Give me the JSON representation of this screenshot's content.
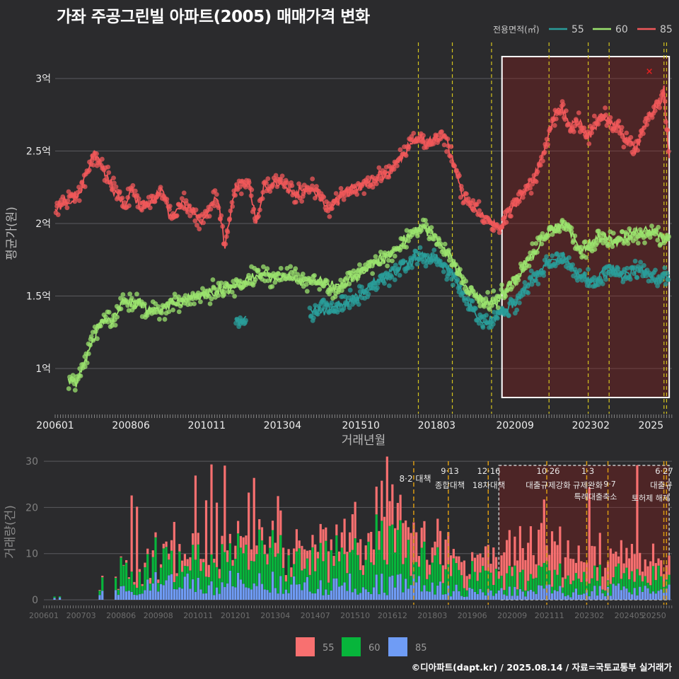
{
  "title": "가좌 주공그린빌 아파트(2005) 매매가격 변화",
  "footer": "©디아파트(dapt.kr) / 2025.08.14 / 자료=국토교통부 실거래가",
  "colors": {
    "s55": "#2a9d9a",
    "s60": "#9be36e",
    "s85": "#f0585a",
    "b55": "#f87070",
    "b60": "#07b53b",
    "b85": "#6f9cf5",
    "vline": "#d4c41e",
    "vline_bottom": "#d99a12",
    "highlight_box": "#ffffff"
  },
  "chart_data": [
    {
      "type": "line",
      "panel": "price",
      "xlabel": "거래년월",
      "ylabel": "평균가(원)",
      "ylim": [
        0.7,
        3.25
      ],
      "y_ticks": [
        {
          "v": 1.0,
          "label": "1억"
        },
        {
          "v": 1.5,
          "label": "1.5억"
        },
        {
          "v": 2.0,
          "label": "2억"
        },
        {
          "v": 2.5,
          "label": "2.5억"
        },
        {
          "v": 3.0,
          "label": "3억"
        }
      ],
      "x_ticks": [
        "200601",
        "200806",
        "201011",
        "201304",
        "201510",
        "201803",
        "202009",
        "202302",
        "2025"
      ],
      "legend": {
        "title": "전용면적(㎡)",
        "position": "top-right",
        "items": [
          "55",
          "60",
          "85"
        ]
      },
      "policy_lines": [
        "2017-08",
        "2018-09",
        "2019-12",
        "2021-10",
        "2023-01",
        "2023-09",
        "2025-06",
        "2025-07"
      ],
      "highlight": {
        "from": "2020-04",
        "to": "2025-08"
      },
      "grid": true,
      "series": [
        {
          "name": "85",
          "points": [
            [
              "2006-01",
              2.1
            ],
            [
              "2006-10",
              2.2
            ],
            [
              "2007-04",
              2.49
            ],
            [
              "2008-04",
              2.1
            ],
            [
              "2008-06",
              2.25
            ],
            [
              "2008-10",
              2.1
            ],
            [
              "2009-06",
              2.22
            ],
            [
              "2009-09",
              2.05
            ],
            [
              "2010-03",
              2.15
            ],
            [
              "2010-09",
              2.0
            ],
            [
              "2011-03",
              2.2
            ],
            [
              "2011-06",
              1.85
            ],
            [
              "2011-10",
              2.25
            ],
            [
              "2012-03",
              2.3
            ],
            [
              "2012-06",
              2.0
            ],
            [
              "2012-09",
              2.25
            ],
            [
              "2013-03",
              2.3
            ],
            [
              "2013-09",
              2.2
            ],
            [
              "2014-03",
              2.25
            ],
            [
              "2014-10",
              2.1
            ],
            [
              "2015-03",
              2.2
            ],
            [
              "2015-09",
              2.25
            ],
            [
              "2016-03",
              2.3
            ],
            [
              "2016-09",
              2.35
            ],
            [
              "2017-03",
              2.5
            ],
            [
              "2017-07",
              2.6
            ],
            [
              "2017-12",
              2.55
            ],
            [
              "2018-06",
              2.6
            ],
            [
              "2018-09",
              2.45
            ],
            [
              "2019-01",
              2.2
            ],
            [
              "2019-06",
              2.1
            ],
            [
              "2019-12",
              2.0
            ],
            [
              "2020-03",
              1.95
            ],
            [
              "2020-07",
              2.1
            ],
            [
              "2020-12",
              2.2
            ],
            [
              "2021-04",
              2.3
            ],
            [
              "2021-08",
              2.5
            ],
            [
              "2021-12",
              2.75
            ],
            [
              "2022-03",
              2.8
            ],
            [
              "2022-06",
              2.65
            ],
            [
              "2022-09",
              2.7
            ],
            [
              "2023-01",
              2.6
            ],
            [
              "2023-06",
              2.75
            ],
            [
              "2023-10",
              2.7
            ],
            [
              "2024-03",
              2.6
            ],
            [
              "2024-07",
              2.5
            ],
            [
              "2024-11",
              2.7
            ],
            [
              "2025-03",
              2.8
            ],
            [
              "2025-06",
              2.9
            ],
            [
              "2025-08",
              2.45
            ]
          ]
        },
        {
          "name": "60",
          "points": [
            [
              "2006-06",
              0.93
            ],
            [
              "2006-09",
              0.9
            ],
            [
              "2007-07",
              1.35
            ],
            [
              "2007-11",
              1.32
            ],
            [
              "2008-03",
              1.48
            ],
            [
              "2008-09",
              1.45
            ],
            [
              "2009-01",
              1.38
            ],
            [
              "2009-06",
              1.42
            ],
            [
              "2009-12",
              1.45
            ],
            [
              "2010-06",
              1.5
            ],
            [
              "2010-12",
              1.52
            ],
            [
              "2011-06",
              1.55
            ],
            [
              "2011-12",
              1.58
            ],
            [
              "2012-06",
              1.65
            ],
            [
              "2012-12",
              1.62
            ],
            [
              "2013-06",
              1.65
            ],
            [
              "2013-12",
              1.6
            ],
            [
              "2014-06",
              1.6
            ],
            [
              "2014-12",
              1.55
            ],
            [
              "2015-06",
              1.62
            ],
            [
              "2015-12",
              1.7
            ],
            [
              "2016-06",
              1.75
            ],
            [
              "2016-12",
              1.82
            ],
            [
              "2017-06",
              1.95
            ],
            [
              "2017-10",
              1.98
            ],
            [
              "2018-03",
              1.9
            ],
            [
              "2018-09",
              1.75
            ],
            [
              "2019-03",
              1.55
            ],
            [
              "2019-09",
              1.45
            ],
            [
              "2020-03",
              1.48
            ],
            [
              "2020-06",
              1.55
            ],
            [
              "2020-09",
              1.6
            ],
            [
              "2021-01",
              1.72
            ],
            [
              "2021-06",
              1.85
            ],
            [
              "2021-10",
              1.95
            ],
            [
              "2022-03",
              2.0
            ],
            [
              "2022-06",
              1.95
            ],
            [
              "2022-10",
              1.82
            ],
            [
              "2023-02",
              1.85
            ],
            [
              "2023-06",
              1.9
            ],
            [
              "2023-12",
              1.88
            ],
            [
              "2024-06",
              1.92
            ],
            [
              "2024-12",
              1.95
            ],
            [
              "2025-06",
              1.9
            ],
            [
              "2025-08",
              1.88
            ]
          ]
        },
        {
          "name": "55",
          "points": [
            [
              "2011-10",
              1.35
            ],
            [
              "2011-12",
              1.32
            ],
            [
              "2014-03",
              1.4
            ],
            [
              "2014-09",
              1.42
            ],
            [
              "2015-03",
              1.45
            ],
            [
              "2015-09",
              1.5
            ],
            [
              "2016-03",
              1.58
            ],
            [
              "2016-09",
              1.65
            ],
            [
              "2017-03",
              1.72
            ],
            [
              "2017-09",
              1.78
            ],
            [
              "2018-03",
              1.75
            ],
            [
              "2018-09",
              1.65
            ],
            [
              "2019-03",
              1.45
            ],
            [
              "2019-07",
              1.35
            ],
            [
              "2019-10",
              1.3
            ],
            [
              "2020-03",
              1.38
            ],
            [
              "2020-09",
              1.45
            ],
            [
              "2021-03",
              1.6
            ],
            [
              "2021-09",
              1.72
            ],
            [
              "2022-03",
              1.78
            ],
            [
              "2022-09",
              1.65
            ],
            [
              "2023-03",
              1.6
            ],
            [
              "2023-09",
              1.68
            ],
            [
              "2024-03",
              1.65
            ],
            [
              "2024-09",
              1.68
            ],
            [
              "2025-03",
              1.62
            ],
            [
              "2025-08",
              1.65
            ]
          ]
        }
      ]
    },
    {
      "type": "bar",
      "panel": "volume",
      "stacked": true,
      "ylabel": "거래량(건)",
      "ylim": [
        0,
        30
      ],
      "y_ticks": [
        0,
        10,
        20,
        30
      ],
      "x_ticks": [
        "200601",
        "200703",
        "200806",
        "200908",
        "201011",
        "201201",
        "201304",
        "201407",
        "201510",
        "201612",
        "201803",
        "201906",
        "202009",
        "202111",
        "202302",
        "202405",
        "20250"
      ],
      "legend": {
        "position": "bottom",
        "items": [
          "55",
          "60",
          "85"
        ]
      },
      "highlight": {
        "from": "2020-04",
        "to": "2025-08"
      },
      "series": [
        {
          "name": "55",
          "values": [
            [
              2006,
              0.0
            ],
            [
              2008,
              0.3
            ],
            [
              2010,
              1.5
            ],
            [
              2012,
              2.5
            ],
            [
              2014,
              3.5
            ],
            [
              2016,
              5.0
            ],
            [
              2017,
              6.0
            ],
            [
              2018,
              4.0
            ],
            [
              2019,
              3.0
            ],
            [
              2020,
              6.0
            ],
            [
              2021,
              8.0
            ],
            [
              2022,
              4.0
            ],
            [
              2023,
              4.5
            ],
            [
              2024,
              5.0
            ],
            [
              2025,
              4.0
            ]
          ]
        },
        {
          "name": "60",
          "values": [
            [
              2006,
              0.2
            ],
            [
              2007,
              1.0
            ],
            [
              2008,
              3.5
            ],
            [
              2009,
              4.5
            ],
            [
              2010,
              4.0
            ],
            [
              2012,
              5.0
            ],
            [
              2014,
              5.5
            ],
            [
              2016,
              7.0
            ],
            [
              2017,
              6.5
            ],
            [
              2018,
              4.0
            ],
            [
              2019,
              3.5
            ],
            [
              2020,
              3.0
            ],
            [
              2021,
              3.5
            ],
            [
              2022,
              2.5
            ],
            [
              2023,
              2.5
            ],
            [
              2024,
              3.0
            ],
            [
              2025,
              3.0
            ]
          ]
        },
        {
          "name": "85",
          "values": [
            [
              2006,
              0.5
            ],
            [
              2007,
              0.8
            ],
            [
              2008,
              2.5
            ],
            [
              2009,
              3.5
            ],
            [
              2010,
              3.0
            ],
            [
              2012,
              3.5
            ],
            [
              2014,
              3.0
            ],
            [
              2016,
              3.0
            ],
            [
              2017,
              3.2
            ],
            [
              2018,
              2.0
            ],
            [
              2019,
              1.5
            ],
            [
              2020,
              1.5
            ],
            [
              2021,
              2.0
            ],
            [
              2022,
              1.5
            ],
            [
              2023,
              1.8
            ],
            [
              2024,
              2.0
            ],
            [
              2025,
              2.0
            ]
          ]
        }
      ],
      "policy_annotations": [
        {
          "date": "2017-08",
          "date_label": "8·2",
          "label": "8·2 대책",
          "name": ""
        },
        {
          "date": "2018-09",
          "date_label": "9·13",
          "label": "종합대책",
          "name": ""
        },
        {
          "date": "2019-12",
          "date_label": "12·16",
          "label": "18차대책",
          "name": ""
        },
        {
          "date": "2021-10",
          "date_label": "10·26",
          "label": "대출규제강화",
          "name": ""
        },
        {
          "date": "2023-01",
          "date_label": "1·3",
          "label": "규제완화",
          "name": ""
        },
        {
          "date": "2023-09",
          "date_label": "9·7",
          "label": "특례대출축소",
          "name": ""
        },
        {
          "date": "2025-06",
          "date_label": "6·27",
          "label": "대출규",
          "name": ""
        },
        {
          "date": "2025-07",
          "date_label": "",
          "label": "토허제 해제",
          "name": ""
        }
      ]
    }
  ]
}
